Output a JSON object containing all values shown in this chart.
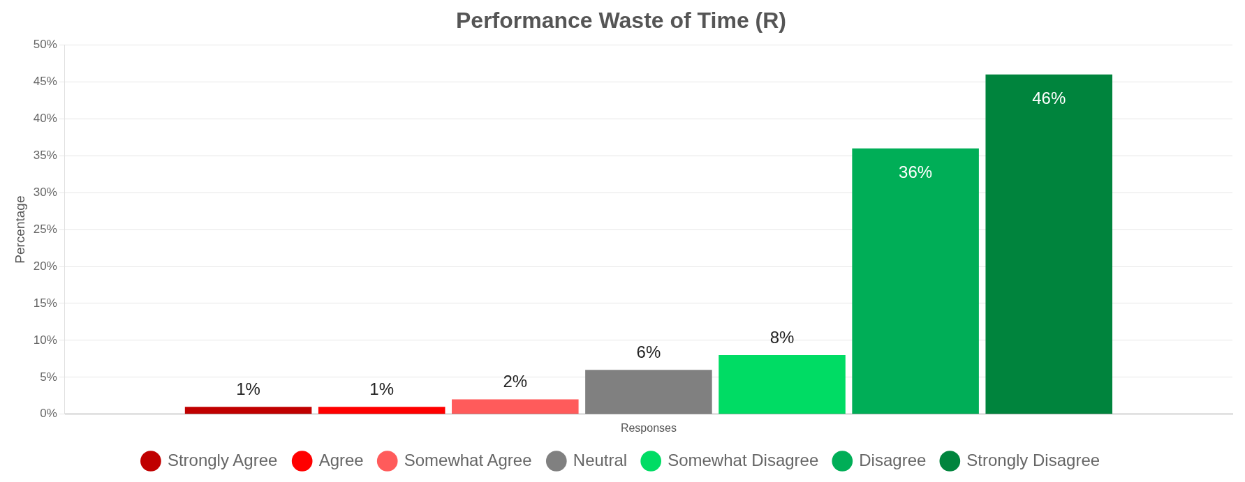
{
  "chart_data": {
    "type": "bar",
    "title": "Performance Waste of Time (R)",
    "ylabel": "Percentage",
    "categories": [
      "Responses"
    ],
    "series": [
      {
        "name": "Strongly Agree",
        "color": "#c00000",
        "values": [
          1
        ],
        "value_labels": [
          "1%"
        ]
      },
      {
        "name": "Agree",
        "color": "#ff0000",
        "values": [
          1
        ],
        "value_labels": [
          "1%"
        ]
      },
      {
        "name": "Somewhat Agree",
        "color": "#ff5b5b",
        "values": [
          2
        ],
        "value_labels": [
          "2%"
        ]
      },
      {
        "name": "Neutral",
        "color": "#808080",
        "values": [
          6
        ],
        "value_labels": [
          "6%"
        ]
      },
      {
        "name": "Somewhat Disagree",
        "color": "#00dc64",
        "values": [
          8
        ],
        "value_labels": [
          "8%"
        ]
      },
      {
        "name": "Disagree",
        "color": "#00ae57",
        "values": [
          36
        ],
        "value_labels": [
          "36%"
        ]
      },
      {
        "name": "Strongly Disagree",
        "color": "#00843d",
        "values": [
          46
        ],
        "value_labels": [
          "46%"
        ]
      }
    ],
    "ylim": [
      0,
      50
    ],
    "yticks": [
      {
        "value": 0,
        "label": "0%"
      },
      {
        "value": 5,
        "label": "5%"
      },
      {
        "value": 10,
        "label": "10%"
      },
      {
        "value": 15,
        "label": "15%"
      },
      {
        "value": 20,
        "label": "20%"
      },
      {
        "value": 25,
        "label": "25%"
      },
      {
        "value": 30,
        "label": "30%"
      },
      {
        "value": 35,
        "label": "35%"
      },
      {
        "value": 40,
        "label": "40%"
      },
      {
        "value": 45,
        "label": "45%"
      },
      {
        "value": 50,
        "label": "50%"
      }
    ],
    "grid": "y",
    "legend": "bottom"
  }
}
